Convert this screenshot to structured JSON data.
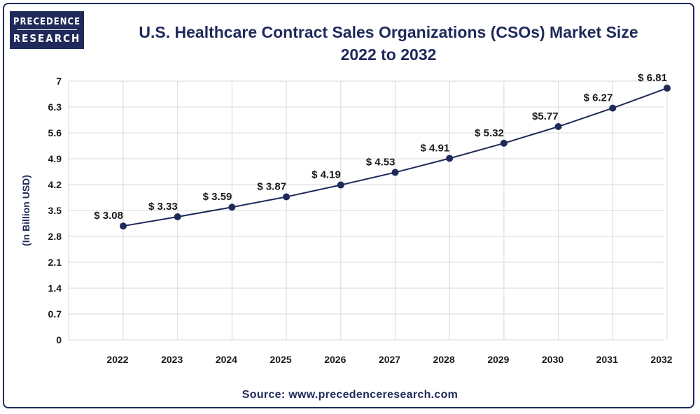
{
  "logo": {
    "line1": "PRECEDENCE",
    "line2": "RESEARCH"
  },
  "header": {
    "title_line1": "U.S. Healthcare Contract Sales Organizations (CSOs) Market Size",
    "title_line2": "2022 to 2032"
  },
  "footer": {
    "source": "Source: www.precedenceresearch.com"
  },
  "colors": {
    "brand": "#1f2a5a",
    "grid": "#d9d9d9",
    "line": "#1f2a5a"
  },
  "chart_data": {
    "type": "line",
    "title": "U.S. Healthcare Contract Sales Organizations (CSOs) Market Size 2022 to 2032",
    "xlabel": "",
    "ylabel": "(In Billion USD)",
    "ylim": [
      0,
      7
    ],
    "yticks": [
      "0",
      "0.7",
      "1.4",
      "2.1",
      "2.8",
      "3.5",
      "4.2",
      "4.9",
      "5.6",
      "6.3",
      "7"
    ],
    "categories": [
      "2022",
      "2023",
      "2024",
      "2025",
      "2026",
      "2027",
      "2028",
      "2029",
      "2030",
      "2031",
      "2032"
    ],
    "values": [
      3.08,
      3.33,
      3.59,
      3.87,
      4.19,
      4.53,
      4.91,
      5.32,
      5.77,
      6.27,
      6.81
    ],
    "data_labels": [
      "$ 3.08",
      "$ 3.33",
      "$ 3.59",
      "$ 3.87",
      "$ 4.19",
      "$ 4.53",
      "$ 4.91",
      "$ 5.32",
      "$5.77",
      "$ 6.27",
      "$ 6.81"
    ],
    "grid": true,
    "legend": "none"
  }
}
